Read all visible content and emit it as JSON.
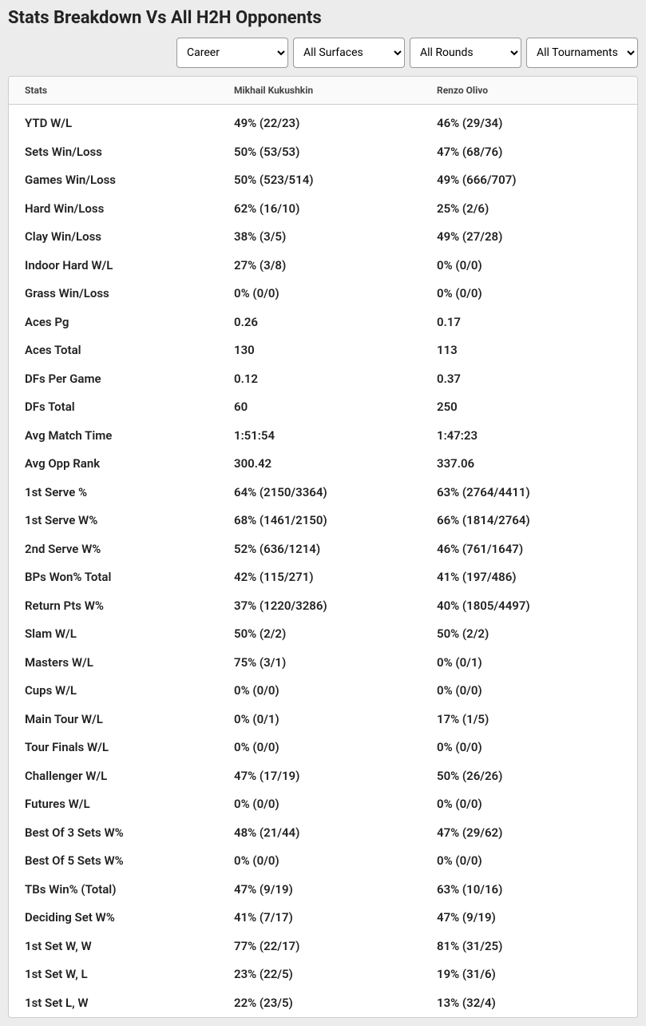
{
  "title": "Stats Breakdown Vs All H2H Opponents",
  "filters": {
    "period": "Career",
    "surface": "All Surfaces",
    "round": "All Rounds",
    "tournament": "All Tournaments"
  },
  "columns": {
    "stat": "Stats",
    "p1": "Mikhail Kukushkin",
    "p2": "Renzo Olivo"
  },
  "rows": [
    {
      "stat": "YTD W/L",
      "p1": "49% (22/23)",
      "p2": "46% (29/34)"
    },
    {
      "stat": "Sets Win/Loss",
      "p1": "50% (53/53)",
      "p2": "47% (68/76)"
    },
    {
      "stat": "Games Win/Loss",
      "p1": "50% (523/514)",
      "p2": "49% (666/707)"
    },
    {
      "stat": "Hard Win/Loss",
      "p1": "62% (16/10)",
      "p2": "25% (2/6)"
    },
    {
      "stat": "Clay Win/Loss",
      "p1": "38% (3/5)",
      "p2": "49% (27/28)"
    },
    {
      "stat": "Indoor Hard W/L",
      "p1": "27% (3/8)",
      "p2": "0% (0/0)"
    },
    {
      "stat": "Grass Win/Loss",
      "p1": "0% (0/0)",
      "p2": "0% (0/0)"
    },
    {
      "stat": "Aces Pg",
      "p1": "0.26",
      "p2": "0.17"
    },
    {
      "stat": "Aces Total",
      "p1": "130",
      "p2": "113"
    },
    {
      "stat": "DFs Per Game",
      "p1": "0.12",
      "p2": "0.37"
    },
    {
      "stat": "DFs Total",
      "p1": "60",
      "p2": "250"
    },
    {
      "stat": "Avg Match Time",
      "p1": "1:51:54",
      "p2": "1:47:23"
    },
    {
      "stat": "Avg Opp Rank",
      "p1": "300.42",
      "p2": "337.06"
    },
    {
      "stat": "1st Serve %",
      "p1": "64% (2150/3364)",
      "p2": "63% (2764/4411)"
    },
    {
      "stat": "1st Serve W%",
      "p1": "68% (1461/2150)",
      "p2": "66% (1814/2764)"
    },
    {
      "stat": "2nd Serve W%",
      "p1": "52% (636/1214)",
      "p2": "46% (761/1647)"
    },
    {
      "stat": "BPs Won% Total",
      "p1": "42% (115/271)",
      "p2": "41% (197/486)"
    },
    {
      "stat": "Return Pts W%",
      "p1": "37% (1220/3286)",
      "p2": "40% (1805/4497)"
    },
    {
      "stat": "Slam W/L",
      "p1": "50% (2/2)",
      "p2": "50% (2/2)"
    },
    {
      "stat": "Masters W/L",
      "p1": "75% (3/1)",
      "p2": "0% (0/1)"
    },
    {
      "stat": "Cups W/L",
      "p1": "0% (0/0)",
      "p2": "0% (0/0)"
    },
    {
      "stat": "Main Tour W/L",
      "p1": "0% (0/1)",
      "p2": "17% (1/5)"
    },
    {
      "stat": "Tour Finals W/L",
      "p1": "0% (0/0)",
      "p2": "0% (0/0)"
    },
    {
      "stat": "Challenger W/L",
      "p1": "47% (17/19)",
      "p2": "50% (26/26)"
    },
    {
      "stat": "Futures W/L",
      "p1": "0% (0/0)",
      "p2": "0% (0/0)"
    },
    {
      "stat": "Best Of 3 Sets W%",
      "p1": "48% (21/44)",
      "p2": "47% (29/62)"
    },
    {
      "stat": "Best Of 5 Sets W%",
      "p1": "0% (0/0)",
      "p2": "0% (0/0)"
    },
    {
      "stat": "TBs Win% (Total)",
      "p1": "47% (9/19)",
      "p2": "63% (10/16)"
    },
    {
      "stat": "Deciding Set W%",
      "p1": "41% (7/17)",
      "p2": "47% (9/19)"
    },
    {
      "stat": "1st Set W, W",
      "p1": "77% (22/17)",
      "p2": "81% (31/25)"
    },
    {
      "stat": "1st Set W, L",
      "p1": "23% (22/5)",
      "p2": "19% (31/6)"
    },
    {
      "stat": "1st Set L, W",
      "p1": "22% (23/5)",
      "p2": "13% (32/4)"
    }
  ]
}
